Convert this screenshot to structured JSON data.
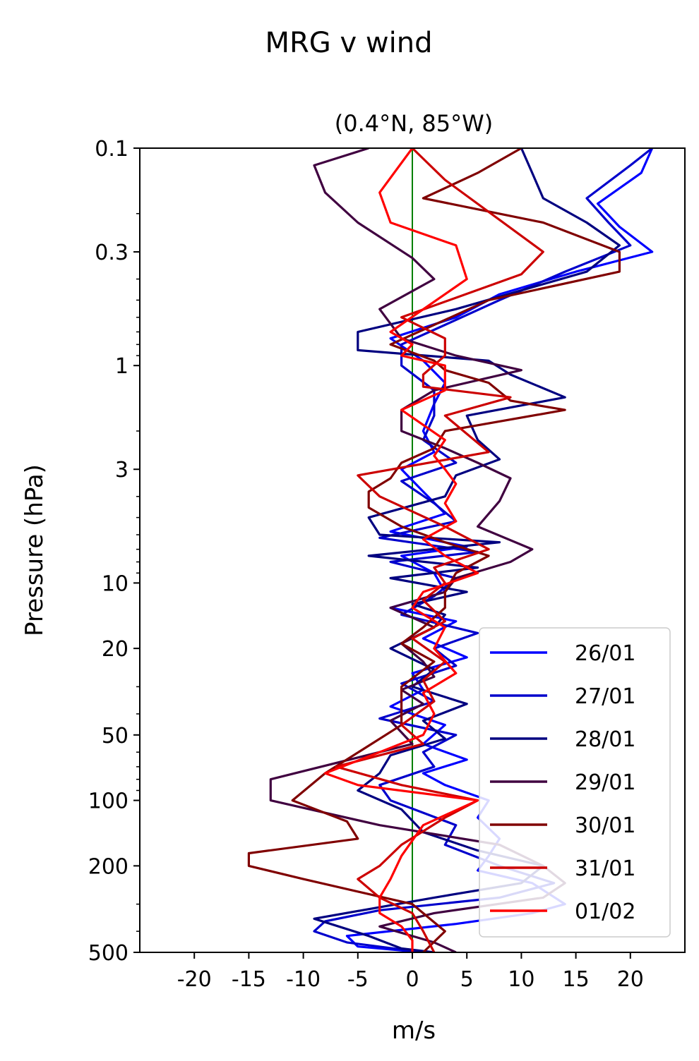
{
  "figure_title": "MRG v wind",
  "chart_data": {
    "type": "line",
    "title": "(0.4°N, 85°W)",
    "xlabel": "m/s",
    "ylabel": "Pressure (hPa)",
    "xlim": [
      -25,
      25
    ],
    "ylim": [
      500,
      0.1
    ],
    "y_scale": "log",
    "x_ticks": [
      -20,
      -15,
      -10,
      -5,
      0,
      5,
      10,
      15,
      20
    ],
    "x_tick_labels": [
      "-20",
      "-15",
      "-10",
      "-5",
      "0",
      "5",
      "10",
      "15",
      "20"
    ],
    "y_ticks": [
      0.1,
      0.3,
      1,
      3,
      10,
      20,
      50,
      100,
      200,
      500
    ],
    "y_tick_labels": [
      "0.1",
      "0.3",
      "1",
      "3",
      "10",
      "20",
      "50",
      "100",
      "200",
      "500"
    ],
    "grid": false,
    "legend_position": "lower right",
    "reference_line": {
      "x": 0,
      "color": "#008000"
    },
    "series": [
      {
        "name": "26/01",
        "color": "#0000ff",
        "v": [
          22,
          21,
          17,
          19,
          22,
          15,
          8,
          4,
          -2,
          1,
          3,
          2,
          1,
          2,
          -1,
          1,
          3,
          -2,
          5,
          -1,
          2,
          3,
          -2,
          4,
          1,
          5,
          0,
          1,
          -2,
          3,
          1,
          5,
          1,
          3,
          7,
          6,
          8,
          7,
          6,
          11,
          14,
          11,
          4,
          -6,
          -5,
          1
        ],
        "p": [
          0.1,
          0.13,
          0.18,
          0.23,
          0.3,
          0.37,
          0.47,
          0.6,
          0.75,
          0.95,
          1.2,
          1.5,
          2,
          2.5,
          3,
          3.8,
          4.8,
          5.8,
          6.8,
          7.5,
          9,
          11,
          13,
          15,
          18,
          22,
          26,
          31,
          37,
          45,
          55,
          65,
          75,
          85,
          100,
          120,
          150,
          180,
          210,
          240,
          300,
          330,
          370,
          420,
          470,
          500
        ]
      },
      {
        "name": "27/01",
        "color": "#0000cc",
        "v": [
          22,
          20,
          16,
          18,
          20,
          14,
          8,
          3,
          -1,
          -1,
          2,
          2,
          1,
          4,
          -1,
          2,
          4,
          -3,
          6,
          -2,
          4,
          2,
          -1,
          6,
          2,
          4,
          -1,
          2,
          -3,
          4,
          1,
          2,
          -3,
          -2,
          4,
          3,
          8,
          13,
          8,
          -3,
          -8,
          -9,
          -6,
          1
        ],
        "p": [
          0.1,
          0.12,
          0.17,
          0.22,
          0.28,
          0.37,
          0.5,
          0.65,
          0.8,
          1.0,
          1.3,
          1.7,
          2.2,
          2.8,
          3.4,
          4.3,
          5.2,
          6.2,
          7.2,
          8,
          9.5,
          11.5,
          14,
          17,
          20,
          24,
          29,
          35,
          42,
          50,
          60,
          70,
          85,
          100,
          130,
          160,
          200,
          240,
          280,
          320,
          360,
          400,
          450,
          500
        ]
      },
      {
        "name": "28/01",
        "color": "#000080",
        "v": [
          10,
          11,
          12,
          16,
          19,
          16,
          4,
          -5,
          -5,
          7,
          9,
          14,
          5,
          6,
          8,
          4,
          3,
          -4,
          -3,
          8,
          -4,
          6,
          -2,
          5,
          0,
          3,
          2,
          -2,
          2,
          0,
          5,
          1,
          3,
          -2,
          -3,
          -5,
          -1,
          1,
          6,
          12,
          10,
          2,
          -9,
          -4,
          -1,
          2
        ],
        "p": [
          0.1,
          0.13,
          0.17,
          0.22,
          0.28,
          0.37,
          0.55,
          0.7,
          0.85,
          0.95,
          1.1,
          1.4,
          1.7,
          2.2,
          2.7,
          3.2,
          4,
          5,
          6,
          6.5,
          7.5,
          8.5,
          9.5,
          11,
          12.5,
          14,
          16,
          20,
          25,
          30,
          36,
          43,
          52,
          62,
          75,
          90,
          110,
          140,
          170,
          200,
          240,
          280,
          350,
          420,
          480,
          500
        ]
      },
      {
        "name": "29/01",
        "color": "#400040",
        "v": [
          -4,
          -9,
          -8,
          -5,
          0,
          2,
          -3,
          -1,
          4,
          10,
          2,
          -1,
          -1,
          3,
          6,
          9,
          8,
          6,
          11,
          9,
          4,
          3,
          -2,
          2,
          -1,
          1,
          2,
          -1,
          1,
          -2,
          0,
          -13,
          -13,
          -3,
          8,
          12,
          14,
          12,
          2,
          -3,
          2,
          4
        ],
        "p": [
          0.1,
          0.12,
          0.16,
          0.22,
          0.32,
          0.4,
          0.55,
          0.75,
          0.9,
          1.05,
          1.3,
          1.6,
          2,
          2.4,
          2.8,
          3.3,
          4.2,
          5.5,
          7,
          8,
          9.5,
          11,
          13,
          16,
          19,
          23,
          27,
          31,
          36,
          43,
          55,
          80,
          100,
          130,
          160,
          200,
          240,
          280,
          330,
          380,
          450,
          500
        ]
      },
      {
        "name": "30/01",
        "color": "#800000",
        "v": [
          10,
          6,
          1,
          12,
          19,
          19,
          7,
          2,
          -2,
          2,
          3,
          7,
          9,
          14,
          3,
          2,
          -1,
          -2,
          -4,
          -4,
          -1,
          3,
          7,
          4,
          3,
          3,
          1,
          -1,
          2,
          -1,
          -1,
          -8,
          -11,
          -6,
          -5,
          -15,
          -15,
          -10,
          0,
          3,
          1
        ],
        "p": [
          0.1,
          0.13,
          0.17,
          0.22,
          0.3,
          0.37,
          0.5,
          0.65,
          0.8,
          0.95,
          1.05,
          1.2,
          1.45,
          1.6,
          2,
          2.4,
          2.8,
          3.3,
          3.8,
          4.5,
          5.5,
          6.5,
          7.5,
          9,
          11,
          13,
          16,
          19,
          23,
          30,
          45,
          75,
          100,
          125,
          150,
          175,
          200,
          230,
          300,
          400,
          500
        ]
      },
      {
        "name": "31/01",
        "color": "#cc0000",
        "v": [
          0,
          3,
          12,
          10,
          -1,
          3,
          3,
          1,
          1,
          9,
          3,
          7,
          -5,
          -3,
          3,
          7,
          2,
          3,
          1,
          3,
          0,
          3,
          1,
          2,
          -1,
          1,
          -7,
          -1,
          6,
          3,
          -1,
          -3,
          -5,
          -3,
          0,
          1,
          2
        ],
        "p": [
          0.1,
          0.14,
          0.3,
          0.38,
          0.6,
          0.75,
          0.9,
          1.1,
          1.25,
          1.4,
          1.7,
          2.5,
          3.2,
          4,
          5.5,
          7,
          8.5,
          10,
          12,
          15,
          18,
          23,
          28,
          35,
          45,
          55,
          70,
          85,
          100,
          120,
          160,
          200,
          230,
          280,
          330,
          400,
          500
        ]
      },
      {
        "name": "01/02",
        "color": "#ff0000",
        "v": [
          0,
          -3,
          -2,
          4,
          5,
          -2,
          0,
          -1,
          3,
          3,
          -1,
          3,
          2,
          3,
          4,
          3,
          4,
          1,
          3,
          6,
          1,
          0,
          3,
          2,
          4,
          1,
          2,
          1,
          -3,
          -8,
          -5,
          6,
          1,
          -1,
          -2,
          -3,
          -3,
          -1,
          0,
          0
        ],
        "p": [
          0.1,
          0.16,
          0.22,
          0.28,
          0.4,
          0.7,
          0.8,
          0.9,
          1,
          1.3,
          1.6,
          2.2,
          2.6,
          3,
          3.5,
          4.3,
          5.2,
          6.3,
          7.5,
          9,
          11,
          13,
          16,
          20,
          26,
          32,
          40,
          50,
          60,
          75,
          85,
          100,
          130,
          180,
          230,
          280,
          330,
          380,
          440,
          500
        ]
      }
    ]
  }
}
